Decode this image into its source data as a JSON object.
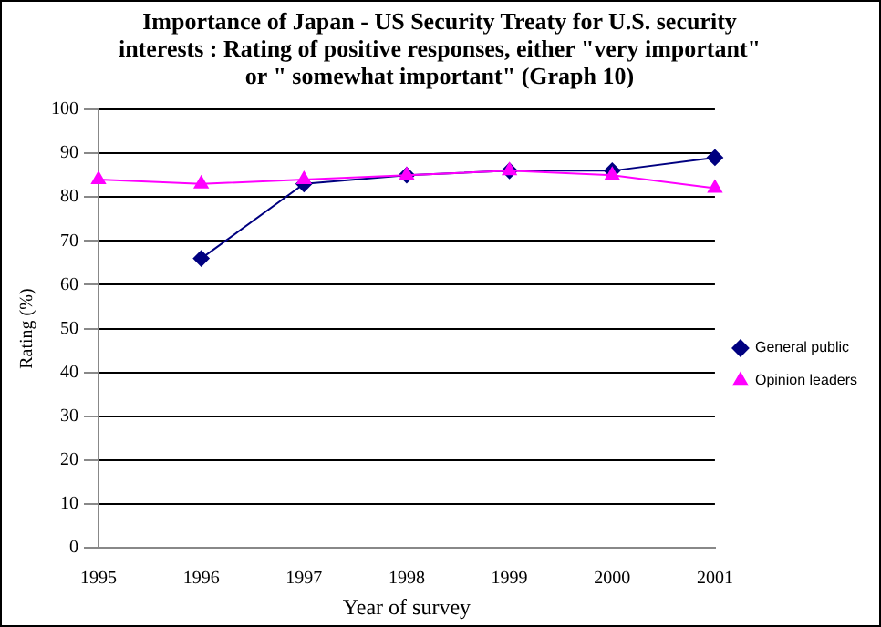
{
  "chart_data": {
    "type": "line",
    "title": "Importance of Japan - US Security Treaty for U.S. security interests : Rating of positive responses, either \"very important\" or \" somewhat important\"  (Graph 10)",
    "xlabel": "Year of survey",
    "ylabel": "Rating (%)",
    "categories": [
      "1995",
      "1996",
      "1997",
      "1998",
      "1999",
      "2000",
      "2001"
    ],
    "series": [
      {
        "name": "General public",
        "color": "#000080",
        "marker": "diamond",
        "values": [
          null,
          66,
          83,
          85,
          86,
          86,
          89
        ]
      },
      {
        "name": "Opinion leaders",
        "color": "#ff00ff",
        "marker": "triangle",
        "values": [
          84,
          83,
          84,
          85,
          86,
          85,
          82
        ]
      }
    ],
    "ylim": [
      0,
      100
    ],
    "yticks": [
      0,
      10,
      20,
      30,
      40,
      50,
      60,
      70,
      80,
      90,
      100
    ],
    "grid": "y",
    "legend": "right"
  }
}
